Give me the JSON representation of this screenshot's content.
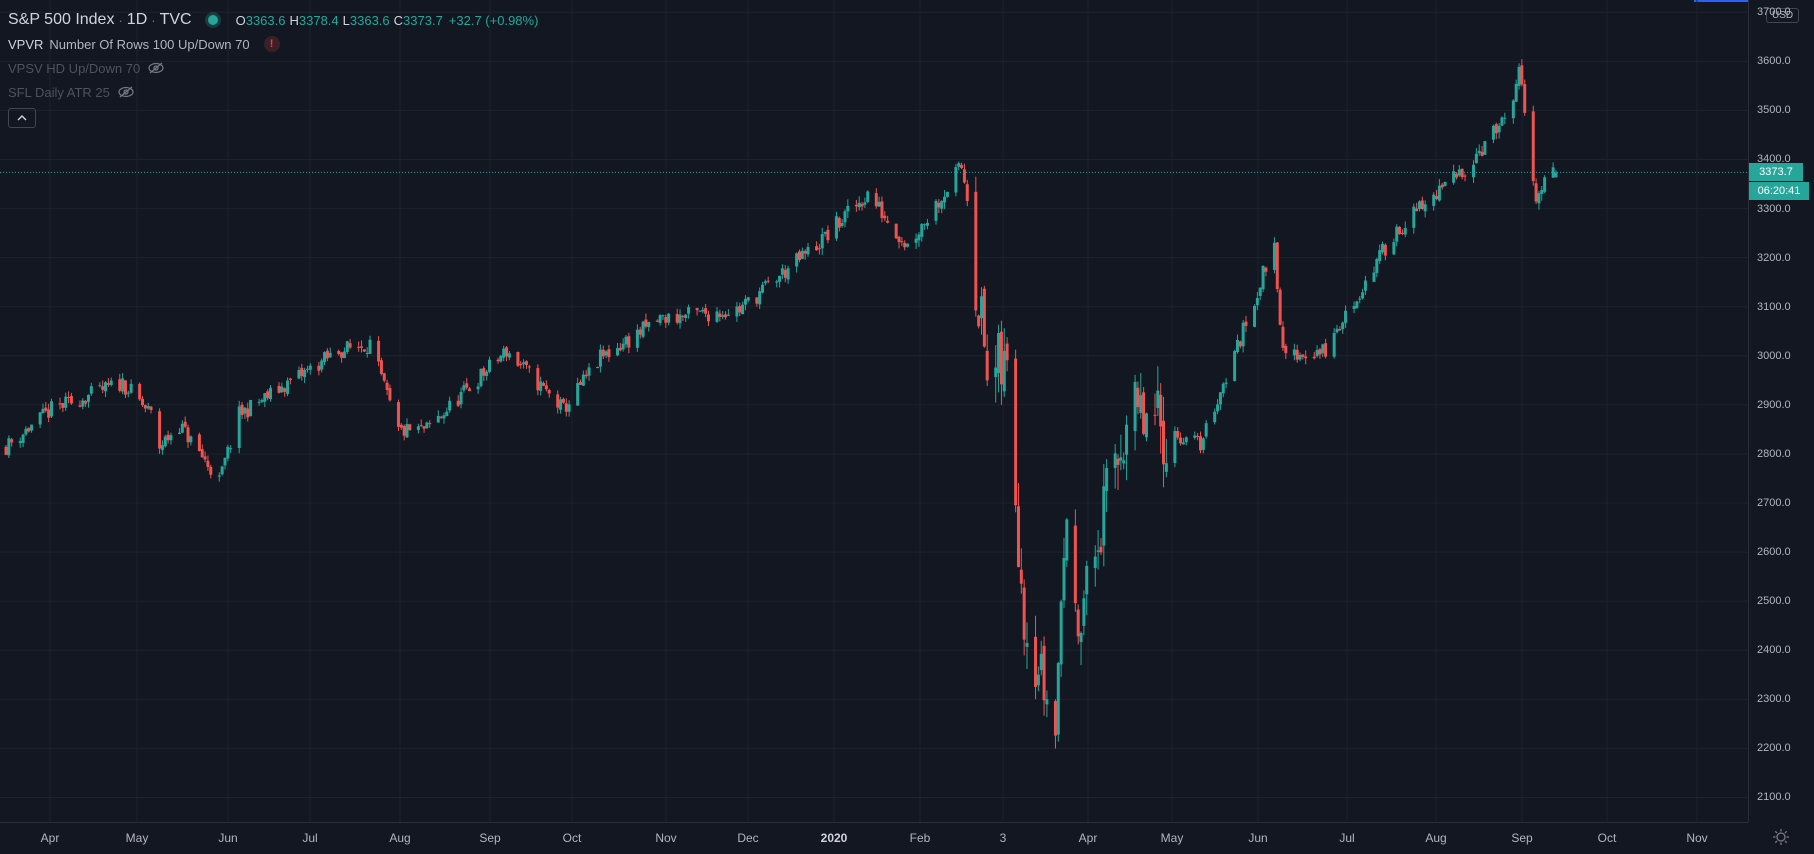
{
  "symbol": {
    "name": "S&P 500 Index",
    "interval": "1D",
    "exchange": "TVC"
  },
  "ohlc": {
    "open_label": "O",
    "open": "3363.6",
    "high_label": "H",
    "high": "3378.4",
    "low_label": "L",
    "low": "3363.6",
    "close_label": "C",
    "close": "3373.7",
    "change": "+32.7 (+0.98%)"
  },
  "indicators": [
    {
      "name": "VPVR",
      "args": "Number Of Rows 100 Up/Down 70",
      "status": "warning"
    },
    {
      "name": "",
      "args": "VPSV HD Up/Down 70",
      "status": "hidden"
    },
    {
      "name": "",
      "args": "SFL Daily ATR 25",
      "status": "hidden"
    }
  ],
  "price_scale": {
    "currency": "USD",
    "labels": [
      "3700.0",
      "3600.0",
      "3500.0",
      "3400.0",
      "3300.0",
      "3200.0",
      "3100.0",
      "3000.0",
      "2900.0",
      "2800.0",
      "2700.0",
      "2600.0",
      "2500.0",
      "2400.0",
      "2300.0",
      "2200.0",
      "2100.0"
    ],
    "last_price": "3373.7",
    "countdown": "06:20:41"
  },
  "time_scale": {
    "labels": [
      "Apr",
      "May",
      "Jun",
      "Jul",
      "Aug",
      "Sep",
      "Oct",
      "Nov",
      "Dec",
      "2020",
      "Feb",
      "3",
      "Apr",
      "May",
      "Jun",
      "Jul",
      "Aug",
      "Sep",
      "Oct",
      "Nov"
    ],
    "major": [
      "2020"
    ]
  },
  "colors": {
    "background": "#131722",
    "up": "#26a69a",
    "down": "#ef5350",
    "grid": "#1e222d",
    "accent": "#2962ff"
  },
  "chart_data": {
    "type": "candlestick",
    "series_name": "S&P 500 Index",
    "ylim": [
      2050,
      3725
    ],
    "last_price": 3373.7,
    "anchors": [
      [
        "2019-03-20",
        2815
      ],
      [
        "2019-04-05",
        2890
      ],
      [
        "2019-04-30",
        2945
      ],
      [
        "2019-05-10",
        2880
      ],
      [
        "2019-05-13",
        2815
      ],
      [
        "2019-05-20",
        2860
      ],
      [
        "2019-06-03",
        2745
      ],
      [
        "2019-06-10",
        2880
      ],
      [
        "2019-07-15",
        3010
      ],
      [
        "2019-07-26",
        3025
      ],
      [
        "2019-08-05",
        2845
      ],
      [
        "2019-08-15",
        2850
      ],
      [
        "2019-09-12",
        3010
      ],
      [
        "2019-10-02",
        2890
      ],
      [
        "2019-10-15",
        2995
      ],
      [
        "2019-11-05",
        3075
      ],
      [
        "2019-12-03",
        3095
      ],
      [
        "2019-12-31",
        3230
      ],
      [
        "2020-01-17",
        3330
      ],
      [
        "2020-01-31",
        3225
      ],
      [
        "2020-02-19",
        3385
      ],
      [
        "2020-02-21",
        3330
      ],
      [
        "2020-02-28",
        2955
      ],
      [
        "2020-03-06",
        2970
      ],
      [
        "2020-03-12",
        2480
      ],
      [
        "2020-03-23",
        2235
      ],
      [
        "2020-03-26",
        2630
      ],
      [
        "2020-04-01",
        2470
      ],
      [
        "2020-04-17",
        2875
      ],
      [
        "2020-05-13",
        2820
      ],
      [
        "2020-05-27",
        3035
      ],
      [
        "2020-06-08",
        3230
      ],
      [
        "2020-06-11",
        3000
      ],
      [
        "2020-06-26",
        3010
      ],
      [
        "2020-07-20",
        3250
      ],
      [
        "2020-08-10",
        3360
      ],
      [
        "2020-08-31",
        3500
      ],
      [
        "2020-09-02",
        3580
      ],
      [
        "2020-09-08",
        3330
      ],
      [
        "2020-09-15",
        3373.7
      ]
    ]
  }
}
